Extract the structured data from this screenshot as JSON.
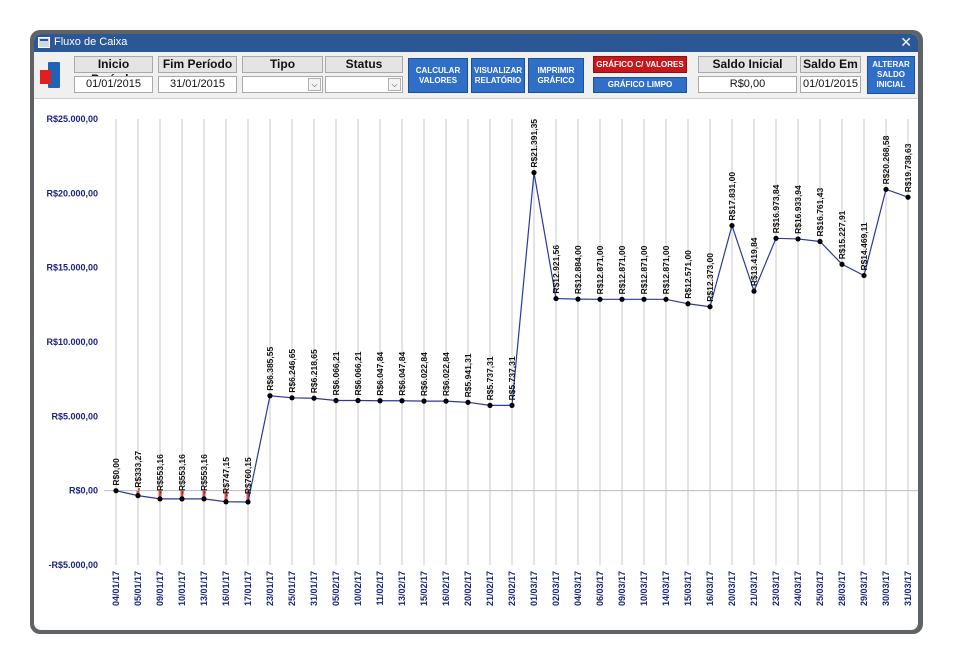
{
  "window": {
    "title": "Fluxo de Caixa",
    "close_glyph": "✕"
  },
  "toolbar": {
    "inicio": {
      "label": "Inicio Período",
      "value": "01/01/2015"
    },
    "fim": {
      "label": "Fim Período",
      "value": "31/01/2015"
    },
    "tipo": {
      "label": "Tipo",
      "value": ""
    },
    "status": {
      "label": "Status",
      "value": ""
    },
    "calcular": [
      "CALCULAR",
      "VALORES"
    ],
    "visualizar": [
      "VISUALIZAR",
      "RELATÓRIO"
    ],
    "imprimir": [
      "IMPRIMIR",
      "GRÁFICO"
    ],
    "grafico_valores": "GRÁFICO C/ VALORES",
    "grafico_limpo": "GRÁFICO LIMPO",
    "saldo_inicial": {
      "label": "Saldo Inicial",
      "value": "R$0,00"
    },
    "saldo_em": {
      "label": "Saldo Em",
      "value": "01/01/2015"
    },
    "alterar": [
      "ALTERAR",
      "SALDO",
      "INICIAL"
    ],
    "icons": {
      "app": "exit-door-icon",
      "combo": "chevron-down-icon"
    }
  },
  "chart_data": {
    "type": "line",
    "title": "",
    "xlabel": "",
    "ylabel": "",
    "ylim": [
      -5000,
      25000
    ],
    "y_ticks": [
      25000,
      20000,
      15000,
      10000,
      5000,
      0,
      -5000
    ],
    "y_tick_labels": [
      "R$25.000,00",
      "R$20.000,00",
      "R$15.000,00",
      "R$10.000,00",
      "R$5.000,00",
      "R$0,00",
      "-R$5.000,00"
    ],
    "grid": "vertical lines per category, horizontal zero line",
    "colors": {
      "line": "#2a3a9a",
      "point": "#000000",
      "axis_text": "#1a237e",
      "negative_bar": "#e04848"
    },
    "categories": [
      "04/01/17",
      "05/01/17",
      "09/01/17",
      "10/01/17",
      "13/01/17",
      "16/01/17",
      "17/01/17",
      "23/01/17",
      "25/01/17",
      "31/01/17",
      "05/02/17",
      "10/02/17",
      "11/02/17",
      "13/02/17",
      "15/02/17",
      "16/02/17",
      "20/02/17",
      "21/02/17",
      "23/02/17",
      "01/03/17",
      "02/03/17",
      "04/03/17",
      "06/03/17",
      "09/03/17",
      "10/03/17",
      "14/03/17",
      "15/03/17",
      "16/03/17",
      "20/03/17",
      "21/03/17",
      "23/03/17",
      "24/03/17",
      "25/03/17",
      "28/03/17",
      "29/03/17",
      "30/03/17",
      "31/03/17"
    ],
    "series": [
      {
        "values": [
          0,
          -333.27,
          -553.16,
          -553.16,
          -553.16,
          -747.15,
          -760.15,
          6385.55,
          6246.65,
          6218.65,
          6066.21,
          6066.21,
          6047.84,
          6047.84,
          6022.84,
          6022.84,
          5941.31,
          5737.31,
          5737.31,
          21391.35,
          12921.56,
          12884.0,
          12871.0,
          12871.0,
          12871.0,
          12871.0,
          12571.0,
          12373.0,
          17831.0,
          13419.84,
          16973.84,
          16933.94,
          16761.43,
          15227.91,
          14469.11,
          20268.58,
          19738.63
        ],
        "labels": [
          "R$0,00",
          "-R$333,27",
          "-R$553,16",
          "-R$553,16",
          "-R$553,16",
          "-R$747,15",
          "-R$760,15",
          "R$6.385,55",
          "R$6.246,65",
          "R$6.218,65",
          "R$6.066,21",
          "R$6.066,21",
          "R$6.047,84",
          "R$6.047,84",
          "R$6.022,84",
          "R$6.022,84",
          "R$5.941,31",
          "R$5.737,31",
          "R$5.737,31",
          "R$21.391,35",
          "R$12.921,56",
          "R$12.884,00",
          "R$12.871,00",
          "R$12.871,00",
          "R$12.871,00",
          "R$12.871,00",
          "R$12.571,00",
          "R$12.373,00",
          "R$17.831,00",
          "R$13.419,84",
          "R$16.973,84",
          "R$16.933,94",
          "R$16.761,43",
          "R$15.227,91",
          "R$14.469,11",
          "R$20.268,58",
          "R$19.738,63"
        ]
      }
    ]
  }
}
